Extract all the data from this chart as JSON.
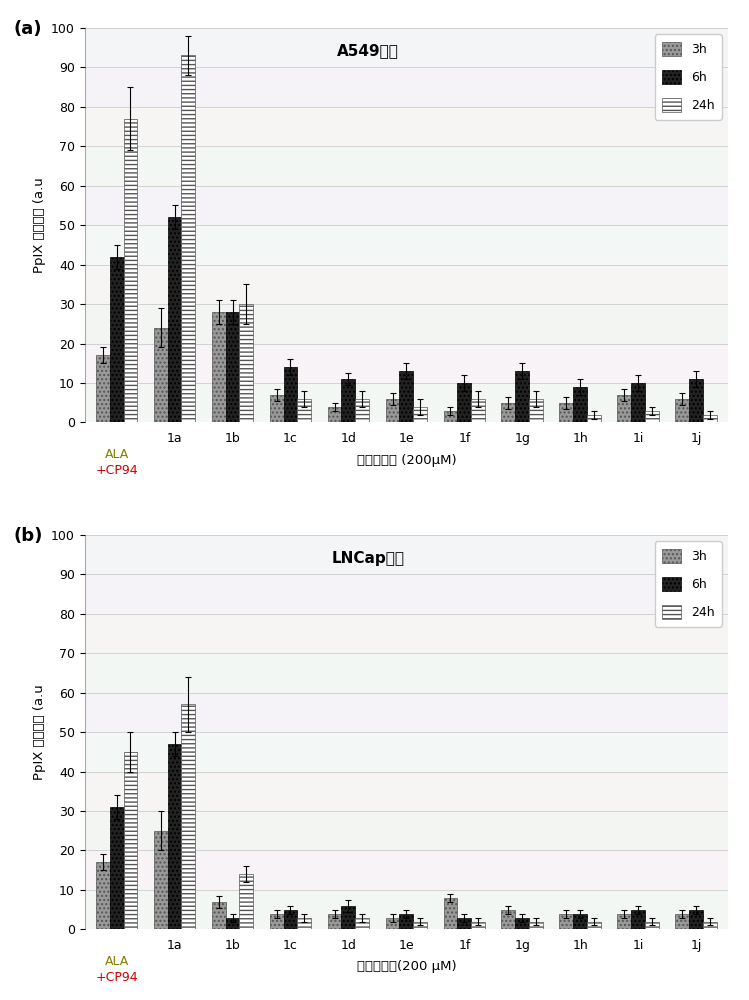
{
  "categories": [
    "ALA\n+CP94",
    "1a",
    "1b",
    "1c",
    "1d",
    "1e",
    "1f",
    "1g",
    "1h",
    "1i",
    "1j"
  ],
  "chart_a": {
    "title": "A549细胞",
    "data_3h": [
      17,
      24,
      28,
      7,
      4,
      6,
      3,
      5,
      5,
      7,
      6
    ],
    "data_6h": [
      42,
      52,
      28,
      14,
      11,
      13,
      10,
      13,
      9,
      10,
      11
    ],
    "data_24h": [
      77,
      93,
      30,
      6,
      6,
      4,
      6,
      6,
      2,
      3,
      2
    ],
    "err_3h": [
      2,
      5,
      3,
      1.5,
      1,
      1.5,
      1,
      1.5,
      1.5,
      1.5,
      1.5
    ],
    "err_6h": [
      3,
      3,
      3,
      2,
      1.5,
      2,
      2,
      2,
      2,
      2,
      2
    ],
    "err_24h": [
      8,
      5,
      5,
      2,
      2,
      2,
      2,
      2,
      1,
      1,
      1
    ]
  },
  "chart_b": {
    "title": "LNCap细胞",
    "data_3h": [
      17,
      25,
      7,
      4,
      4,
      3,
      8,
      5,
      4,
      4,
      4
    ],
    "data_6h": [
      31,
      47,
      3,
      5,
      6,
      4,
      3,
      3,
      4,
      5,
      5
    ],
    "data_24h": [
      45,
      57,
      14,
      3,
      3,
      2,
      2,
      2,
      2,
      2,
      2
    ],
    "err_3h": [
      2,
      5,
      1.5,
      1,
      1,
      1,
      1,
      1,
      1,
      1,
      1
    ],
    "err_6h": [
      3,
      3,
      1,
      1,
      1.5,
      1,
      1,
      1,
      1,
      1,
      1
    ],
    "err_24h": [
      5,
      7,
      2,
      1,
      1,
      1,
      1,
      1,
      1,
      1,
      1
    ]
  },
  "ylabel": "PpIX 荧光强度 (a.u",
  "xlabel_a": "化合物浓度 (200μM)",
  "xlabel_b": "化合物浓度(200 μM)",
  "ylim": [
    0,
    100
  ],
  "yticks": [
    0,
    10,
    20,
    30,
    40,
    50,
    60,
    70,
    80,
    90,
    100
  ],
  "color_3h": "#999999",
  "color_6h": "#222222",
  "color_24h": "#ffffff",
  "background_color": "#ffffff",
  "bar_width": 0.24,
  "panel_a_label": "(a)",
  "panel_b_label": "(b)",
  "ala_color_top": "#808000",
  "ala_color_bot": "#cc0000",
  "grid_colors": [
    "#e8f0e8",
    "#f0e8f0",
    "#e8ece8",
    "#f0ece8",
    "#e8f0ec",
    "#ece8f0",
    "#e8f0e8",
    "#f0ece8",
    "#ece8f0",
    "#e8ecf0"
  ]
}
